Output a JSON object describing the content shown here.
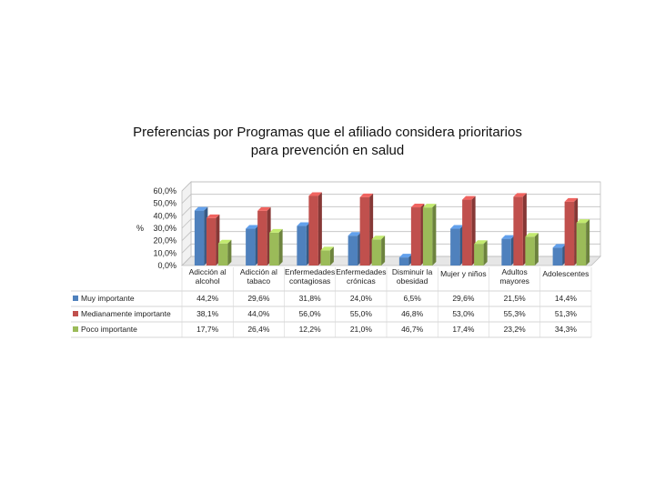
{
  "chart_data": {
    "type": "bar",
    "title_lines": [
      "Preferencias por Programas que el afiliado considera prioritarios",
      "para prevención en salud"
    ],
    "ylabel": "%",
    "ylim": [
      0,
      60
    ],
    "yticks": [
      "0,0%",
      "10,0%",
      "20,0%",
      "30,0%",
      "40,0%",
      "50,0%",
      "60,0%"
    ],
    "categories": [
      [
        "Adicción al",
        "alcohol"
      ],
      [
        "Adicción al",
        "tabaco"
      ],
      [
        "Enfermedades",
        "contagiosas"
      ],
      [
        "Enfermedades",
        "crónicas"
      ],
      [
        "Disminuir la",
        "obesidad"
      ],
      [
        "Mujer y niños"
      ],
      [
        "Adultos",
        "mayores"
      ],
      [
        "Adolescentes"
      ]
    ],
    "series": [
      {
        "name": "Muy importante",
        "color": "#4f81bd",
        "values": [
          44.2,
          29.6,
          31.8,
          24.0,
          6.5,
          29.6,
          21.5,
          14.4
        ],
        "labels": [
          "44,2%",
          "29,6%",
          "31,8%",
          "24,0%",
          "6,5%",
          "29,6%",
          "21,5%",
          "14,4%"
        ]
      },
      {
        "name": "Medianamente importante",
        "color": "#c0504d",
        "values": [
          38.1,
          44.0,
          56.0,
          55.0,
          46.8,
          53.0,
          55.3,
          51.3
        ],
        "labels": [
          "38,1%",
          "44,0%",
          "56,0%",
          "55,0%",
          "46,8%",
          "53,0%",
          "55,3%",
          "51,3%"
        ]
      },
      {
        "name": "Poco importante",
        "color": "#9bbb59",
        "values": [
          17.7,
          26.4,
          12.2,
          21.0,
          46.7,
          17.4,
          23.2,
          34.3
        ],
        "labels": [
          "17,7%",
          "26,4%",
          "12,2%",
          "21,0%",
          "46,7%",
          "17,4%",
          "23,2%",
          "34,3%"
        ]
      }
    ]
  }
}
